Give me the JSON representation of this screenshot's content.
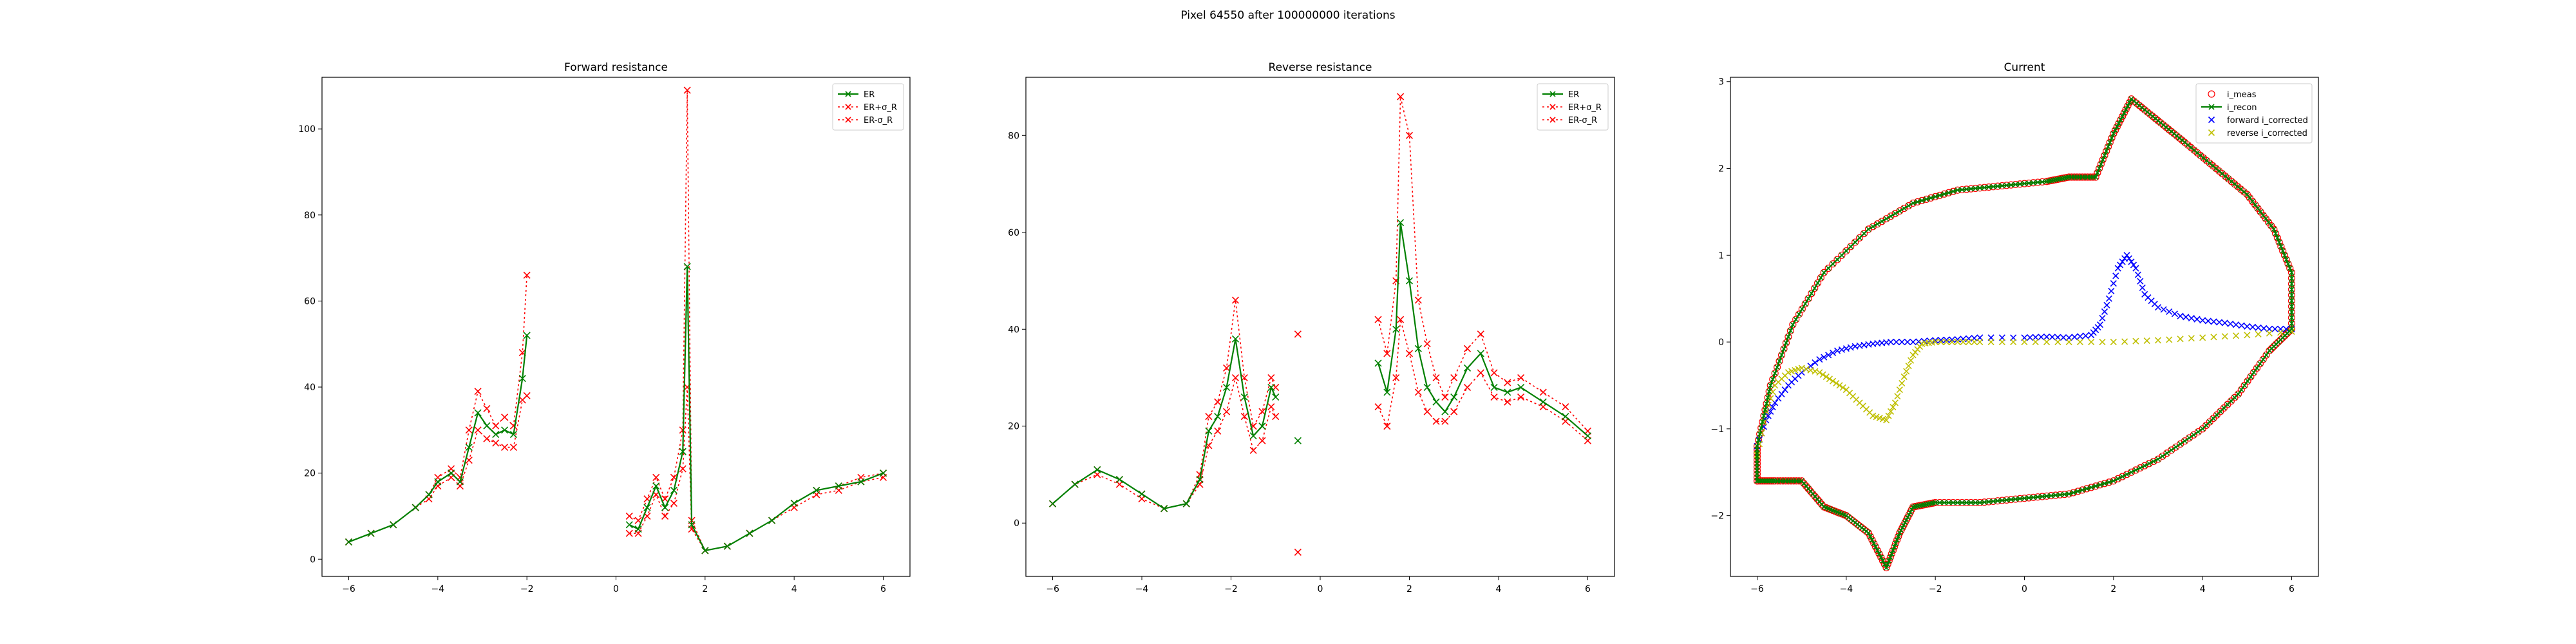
{
  "figure": {
    "suptitle": "Pixel 64550 after 100000000 iterations"
  },
  "colors": {
    "er": "#008000",
    "bounds": "#ff0000",
    "forward": "#0000ff",
    "reverse": "#bfbf00",
    "meas_edge": "#ff0000"
  },
  "chart_data": [
    {
      "type": "line",
      "title": "Forward resistance",
      "xlim": [
        -6.6,
        6.6
      ],
      "ylim": [
        -4,
        112
      ],
      "xticks": [
        -6,
        -4,
        -2,
        0,
        2,
        4,
        6
      ],
      "yticks": [
        0,
        20,
        40,
        60,
        80,
        100
      ],
      "legend": {
        "placement": "top-right",
        "entries": [
          "ER",
          "ER+σ_R",
          "ER-σ_R"
        ]
      },
      "series": [
        {
          "name": "ER",
          "segments": [
            {
              "x": [
                -6,
                -5.5,
                -5,
                -4.5,
                -4.2,
                -4,
                -3.7,
                -3.5,
                -3.3,
                -3.1,
                -2.9,
                -2.7,
                -2.5,
                -2.3,
                -2.1,
                -2.0
              ],
              "y": [
                4,
                6,
                8,
                12,
                15,
                18,
                20,
                18,
                26,
                34,
                31,
                29,
                30,
                29,
                42,
                52
              ]
            },
            {
              "x": [
                0.3,
                0.5,
                0.7,
                0.9,
                1.1,
                1.3,
                1.5,
                1.6,
                1.7,
                2.0,
                2.5,
                3.0,
                3.5,
                4.0,
                4.5,
                5.0,
                5.5,
                6.0
              ],
              "y": [
                8,
                7,
                12,
                17,
                12,
                16,
                25,
                68,
                8,
                2,
                3,
                6,
                9,
                13,
                16,
                17,
                18,
                20
              ]
            }
          ]
        },
        {
          "name": "ER+σ_R",
          "segments": [
            {
              "x": [
                -6,
                -5.5,
                -5,
                -4.5,
                -4.2,
                -4,
                -3.7,
                -3.5,
                -3.3,
                -3.1,
                -2.9,
                -2.7,
                -2.5,
                -2.3,
                -2.1,
                -2.0
              ],
              "y": [
                4,
                6,
                8,
                12,
                15,
                19,
                21,
                19,
                30,
                39,
                35,
                31,
                33,
                31,
                48,
                66
              ]
            },
            {
              "x": [
                0.3,
                0.5,
                0.7,
                0.9,
                1.1,
                1.3,
                1.5,
                1.6,
                1.7,
                2.0,
                2.5,
                3.0,
                3.5,
                4.0,
                4.5,
                5.0,
                5.5,
                6.0
              ],
              "y": [
                10,
                9,
                14,
                19,
                14,
                19,
                30,
                109,
                9,
                2,
                3,
                6,
                9,
                13,
                16,
                17,
                19,
                20
              ]
            }
          ]
        },
        {
          "name": "ER-σ_R",
          "segments": [
            {
              "x": [
                -6,
                -5.5,
                -5,
                -4.5,
                -4.2,
                -4,
                -3.7,
                -3.5,
                -3.3,
                -3.1,
                -2.9,
                -2.7,
                -2.5,
                -2.3,
                -2.1,
                -2.0
              ],
              "y": [
                4,
                6,
                8,
                12,
                14,
                17,
                19,
                17,
                23,
                30,
                28,
                27,
                26,
                26,
                37,
                38
              ]
            },
            {
              "x": [
                0.3,
                0.5,
                0.7,
                0.9,
                1.1,
                1.3,
                1.5,
                1.6,
                1.7,
                2.0,
                2.5,
                3.0,
                3.5,
                4.0,
                4.5,
                5.0,
                5.5,
                6.0
              ],
              "y": [
                6,
                6,
                10,
                15,
                10,
                13,
                21,
                40,
                7,
                2,
                3,
                6,
                9,
                12,
                15,
                16,
                18,
                19
              ]
            }
          ]
        }
      ]
    },
    {
      "type": "line",
      "title": "Reverse resistance",
      "xlim": [
        -6.6,
        6.6
      ],
      "ylim": [
        -11,
        92
      ],
      "xticks": [
        -6,
        -4,
        -2,
        0,
        2,
        4,
        6
      ],
      "yticks": [
        0,
        20,
        40,
        60,
        80
      ],
      "legend": {
        "placement": "top-right",
        "entries": [
          "ER",
          "ER+σ_R",
          "ER-σ_R"
        ]
      },
      "series": [
        {
          "name": "ER",
          "segments": [
            {
              "x": [
                -6,
                -5.5,
                -5,
                -4.5,
                -4,
                -3.5,
                -3.0,
                -2.7,
                -2.5,
                -2.3,
                -2.1,
                -1.9,
                -1.7,
                -1.5,
                -1.3,
                -1.1,
                -1.0
              ],
              "y": [
                4,
                8,
                11,
                9,
                6,
                3,
                4,
                9,
                19,
                22,
                28,
                38,
                26,
                18,
                20,
                28,
                26
              ]
            },
            {
              "x": [
                -0.5
              ],
              "y": [
                17
              ]
            },
            {
              "x": [
                1.3,
                1.5,
                1.7,
                1.8,
                2.0,
                2.2,
                2.4,
                2.6,
                2.8,
                3.0,
                3.3,
                3.6,
                3.9,
                4.2,
                4.5,
                5.0,
                5.5,
                6.0
              ],
              "y": [
                33,
                27,
                40,
                62,
                50,
                36,
                28,
                25,
                23,
                26,
                32,
                35,
                28,
                27,
                28,
                25,
                22,
                18
              ]
            }
          ]
        },
        {
          "name": "ER+σ_R",
          "segments": [
            {
              "x": [
                -6,
                -5.5,
                -5,
                -4.5,
                -4,
                -3.5,
                -3.0,
                -2.7,
                -2.5,
                -2.3,
                -2.1,
                -1.9,
                -1.7,
                -1.5,
                -1.3,
                -1.1,
                -1.0
              ],
              "y": [
                4,
                8,
                11,
                9,
                6,
                3,
                4,
                10,
                22,
                25,
                32,
                46,
                30,
                20,
                23,
                30,
                28
              ]
            },
            {
              "x": [
                -0.5
              ],
              "y": [
                39
              ]
            },
            {
              "x": [
                1.3,
                1.5,
                1.7,
                1.8,
                2.0,
                2.2,
                2.4,
                2.6,
                2.8,
                3.0,
                3.3,
                3.6,
                3.9,
                4.2,
                4.5,
                5.0,
                5.5,
                6.0
              ],
              "y": [
                42,
                35,
                50,
                88,
                80,
                46,
                37,
                30,
                26,
                30,
                36,
                39,
                31,
                29,
                30,
                27,
                24,
                19
              ]
            }
          ]
        },
        {
          "name": "ER-σ_R",
          "segments": [
            {
              "x": [
                -6,
                -5.5,
                -5,
                -4.5,
                -4,
                -3.5,
                -3.0,
                -2.7,
                -2.5,
                -2.3,
                -2.1,
                -1.9,
                -1.7,
                -1.5,
                -1.3,
                -1.1,
                -1.0
              ],
              "y": [
                4,
                8,
                10,
                8,
                5,
                3,
                4,
                8,
                16,
                19,
                23,
                30,
                22,
                15,
                17,
                24,
                22
              ]
            },
            {
              "x": [
                -0.5
              ],
              "y": [
                -6
              ]
            },
            {
              "x": [
                1.3,
                1.5,
                1.7,
                1.8,
                2.0,
                2.2,
                2.4,
                2.6,
                2.8,
                3.0,
                3.3,
                3.6,
                3.9,
                4.2,
                4.5,
                5.0,
                5.5,
                6.0
              ],
              "y": [
                24,
                20,
                30,
                42,
                35,
                27,
                23,
                21,
                21,
                23,
                28,
                31,
                26,
                25,
                26,
                24,
                21,
                17
              ]
            }
          ]
        }
      ]
    },
    {
      "type": "scatter",
      "title": "Current",
      "xlim": [
        -6.6,
        6.6
      ],
      "ylim": [
        -2.7,
        3.05
      ],
      "xticks": [
        -6,
        -4,
        -2,
        0,
        2,
        4,
        6
      ],
      "yticks": [
        -2,
        -1,
        0,
        1,
        2,
        3
      ],
      "legend": {
        "placement": "top-right",
        "entries": [
          "i_meas",
          "i_recon",
          "forward i_corrected",
          "reverse i_corrected"
        ]
      },
      "series": [
        {
          "name": "i_recon",
          "loop": [
            [
              -6.0,
              -1.6
            ],
            [
              -5.6,
              -1.6
            ],
            [
              -5.0,
              -1.6
            ],
            [
              -4.5,
              -1.9
            ],
            [
              -4.0,
              -2.0
            ],
            [
              -3.5,
              -2.2
            ],
            [
              -3.1,
              -2.6
            ],
            [
              -2.8,
              -2.2
            ],
            [
              -2.5,
              -1.9
            ],
            [
              -2.0,
              -1.85
            ],
            [
              -1.0,
              -1.85
            ],
            [
              0.0,
              -1.8
            ],
            [
              1.0,
              -1.75
            ],
            [
              2.0,
              -1.6
            ],
            [
              3.0,
              -1.35
            ],
            [
              4.0,
              -1.0
            ],
            [
              4.8,
              -0.6
            ],
            [
              5.5,
              -0.1
            ],
            [
              6.0,
              0.15
            ],
            [
              6.0,
              0.8
            ],
            [
              5.6,
              1.3
            ],
            [
              5.0,
              1.7
            ],
            [
              4.3,
              2.0
            ],
            [
              3.6,
              2.3
            ],
            [
              3.0,
              2.55
            ],
            [
              2.4,
              2.8
            ],
            [
              2.0,
              2.4
            ],
            [
              1.6,
              1.9
            ],
            [
              1.0,
              1.9
            ],
            [
              0.5,
              1.85
            ],
            [
              -0.5,
              1.8
            ],
            [
              -1.5,
              1.75
            ],
            [
              -2.5,
              1.6
            ],
            [
              -3.5,
              1.3
            ],
            [
              -4.5,
              0.8
            ],
            [
              -5.2,
              0.2
            ],
            [
              -5.7,
              -0.5
            ],
            [
              -6.0,
              -1.2
            ],
            [
              -6.0,
              -1.6
            ]
          ]
        },
        {
          "name": "forward i_corrected",
          "x": [
            -6.0,
            -5.8,
            -5.6,
            -5.3,
            -5.0,
            -4.6,
            -4.2,
            -3.8,
            -3.4,
            -3.0,
            -2.5,
            -2.0,
            -1.5,
            -1.0,
            0.0,
            0.5,
            1.0,
            1.5,
            1.7,
            1.9,
            2.1,
            2.3,
            2.5,
            2.7,
            3.0,
            3.5,
            4.0,
            4.5,
            5.0,
            5.5,
            6.0
          ],
          "y": [
            -1.2,
            -0.9,
            -0.7,
            -0.5,
            -0.35,
            -0.2,
            -0.1,
            -0.05,
            -0.02,
            0.0,
            0.0,
            0.02,
            0.03,
            0.05,
            0.05,
            0.06,
            0.05,
            0.08,
            0.2,
            0.5,
            0.85,
            1.0,
            0.85,
            0.55,
            0.4,
            0.3,
            0.25,
            0.22,
            0.18,
            0.15,
            0.15
          ]
        },
        {
          "name": "reverse i_corrected",
          "x": [
            -6.0,
            -5.8,
            -5.6,
            -5.3,
            -5.0,
            -4.6,
            -4.3,
            -4.0,
            -3.7,
            -3.4,
            -3.1,
            -2.9,
            -2.7,
            -2.5,
            -2.3,
            -2.0,
            -1.5,
            -1.0,
            0.0,
            1.0,
            2.0,
            3.0,
            4.0,
            5.0,
            6.0
          ],
          "y": [
            -1.3,
            -0.8,
            -0.5,
            -0.35,
            -0.3,
            -0.35,
            -0.45,
            -0.55,
            -0.7,
            -0.85,
            -0.9,
            -0.7,
            -0.4,
            -0.15,
            -0.02,
            0.0,
            0.0,
            0.0,
            0.0,
            0.0,
            0.0,
            0.02,
            0.05,
            0.08,
            0.12
          ]
        }
      ]
    }
  ]
}
